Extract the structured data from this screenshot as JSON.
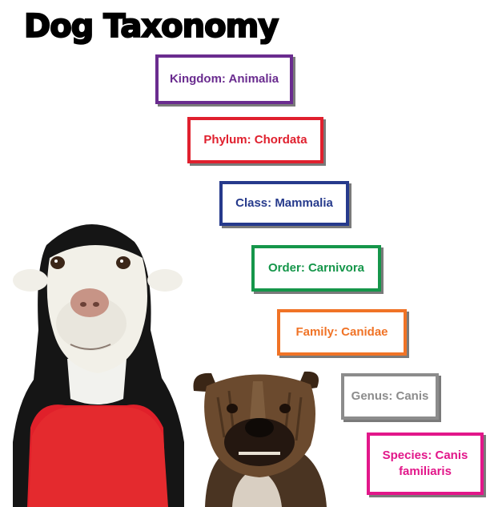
{
  "title": "Dog Taxonomy",
  "ranks": [
    {
      "label": "Kingdom: Animalia",
      "color": "#6a2c8f"
    },
    {
      "label": "Phylum: Chordata",
      "color": "#e0202e"
    },
    {
      "label": "Class: Mammalia",
      "color": "#263a8c"
    },
    {
      "label": "Order: Carnivora",
      "color": "#15964a"
    },
    {
      "label": "Family: Canidae",
      "color": "#f07326"
    },
    {
      "label": "Genus: Canis",
      "color": "#8c8c8c"
    },
    {
      "label": "Species: Canis familiaris",
      "color": "#e2178a"
    }
  ]
}
